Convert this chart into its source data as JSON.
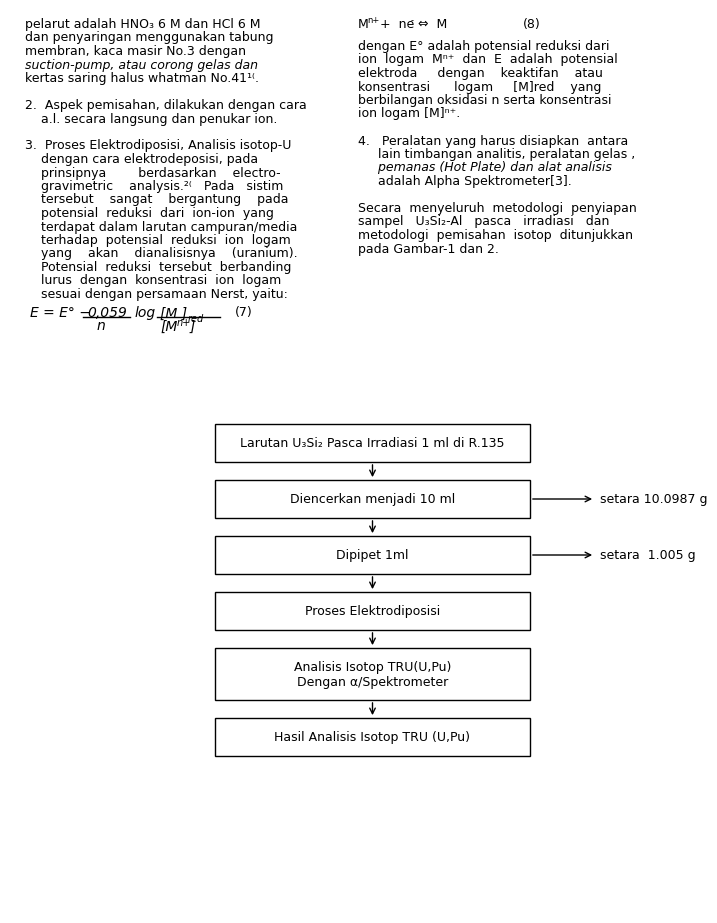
{
  "bg_color": "#ffffff",
  "box_color": "#000000",
  "box_fill": "#ffffff",
  "arrow_color": "#000000",
  "font_size": 9,
  "side_font_size": 9,
  "title_font_size": 9,
  "left_col_texts": [
    "pelarut adalah HNO₃ 6 M dan HCl 6 M",
    "dan penyaringan menggunakan tabung",
    "membran, kaca masir No.3 dengan",
    "suction-pump, atau corong gelas dan",
    "kertas saring halus whatman No.41¹⁽.",
    "",
    "2.   Aspek pemisahan, dilakukan dengan cara",
    "     a.l. secara langsung dan penukar ion.",
    "",
    "3.   Proses Elektrodiposisi, Analisis isotop-U",
    "     dengan cara elektrodeposisi, pada",
    "     prinsipnya        berdasarkan    electro-",
    "     gravimetric    analysis.²⁽   Pada   sistim",
    "     tersebut    sangat    bergantung    pada",
    "     potensial  reduksi  dari  ion-ion  yang",
    "     terdapat dalam larutan campuran/media",
    "     terhadap  potensial  reduksi  ion  logam",
    "     yang    akan    dianalisisnya    (uranium).",
    "     Potensial  reduksi  tersebut  berbanding",
    "     lurus  dengan  konsentrasi  ion  logam",
    "     sesuai dengan persamaan Nerst, yaitu:"
  ],
  "right_col_texts": [
    "dengan E° adalah potensial reduksi dari",
    "ion  logam  Mⁿ⁺  dan  E  adalah  potensial",
    "elektroda     dengan    keaktifan    atau",
    "konsentrasi      logam     [M]ᵣₑᵈ    yang",
    "berbilangan oksidasi n serta konsentrasi",
    "ion logam [M]ⁿ⁺.",
    "",
    "4.   Peralatan yang harus disiapkan  antara",
    "     lain timbangan analitis, peralatan gelas ,",
    "     pemanas (Hot Plate) dan alat analisis",
    "     adalah Alpha Spektrometer³⁽.",
    "",
    "Secara  menyeluruh  metodologi  penyiapan",
    "sampel   U₃Si₂-Al   pasca   irradiasi   dan",
    "metodologi  pemisahan  isotop  ditunjukkan",
    "pada Gambar-1 dan 2."
  ],
  "boxes": [
    {
      "label": "Larutan U₃Si₂ Pasca Irradiasi 1 ml di R.135",
      "side_arrow": false,
      "side_text": ""
    },
    {
      "label": "Diencerkan menjadi 10 ml",
      "side_arrow": true,
      "side_text": "setara 10.0987 g"
    },
    {
      "label": "Dipipet 1ml",
      "side_arrow": true,
      "side_text": "setara  1.005 g"
    },
    {
      "label": "Proses Elektrodiposisi",
      "side_arrow": false,
      "side_text": ""
    },
    {
      "label": "Analisis Isotop TRU(U,Pu)\nDengan α/Spektrometer",
      "side_arrow": false,
      "side_text": ""
    },
    {
      "label": "Hasil Analisis Isotop TRU (U,Pu)",
      "side_arrow": false,
      "side_text": ""
    }
  ]
}
